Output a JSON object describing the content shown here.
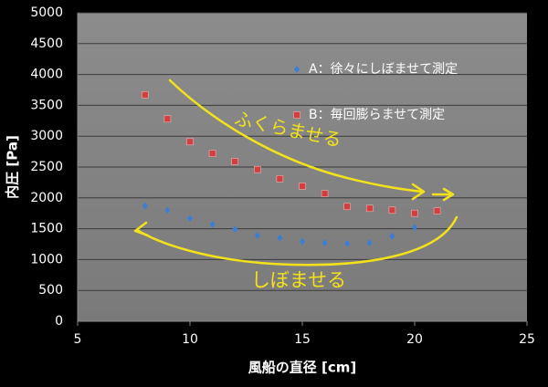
{
  "chart_data": {
    "type": "scatter",
    "xlabel": "風船の直径 [cm]",
    "ylabel": "内圧 [Pa]",
    "xlim": [
      5,
      25
    ],
    "xticks": [
      5,
      10,
      15,
      20,
      25
    ],
    "ylim": [
      0,
      5000
    ],
    "yticks": [
      0,
      500,
      1000,
      1500,
      2000,
      2500,
      3000,
      3500,
      4000,
      4500,
      5000
    ],
    "grid": true,
    "series": [
      {
        "name": "A：徐々にしぼませて測定",
        "color": "#3a7fd5",
        "marker": "diamond",
        "x": [
          8,
          9,
          10,
          11,
          12,
          13,
          14,
          15,
          16,
          17,
          18,
          19,
          20
        ],
        "values": [
          1870,
          1800,
          1670,
          1570,
          1490,
          1390,
          1350,
          1290,
          1270,
          1260,
          1270,
          1380,
          1520
        ]
      },
      {
        "name": "B：毎回膨らませて測定",
        "color": "#d04040",
        "marker": "square",
        "x": [
          8,
          9,
          10,
          11,
          12,
          13,
          14,
          15,
          16,
          17,
          18,
          19,
          20,
          21
        ],
        "values": [
          3670,
          3280,
          2910,
          2720,
          2590,
          2460,
          2310,
          2190,
          2070,
          1860,
          1830,
          1800,
          1750,
          1790
        ]
      }
    ],
    "annotations": [
      "ふくらませる",
      "しぼませる"
    ]
  }
}
